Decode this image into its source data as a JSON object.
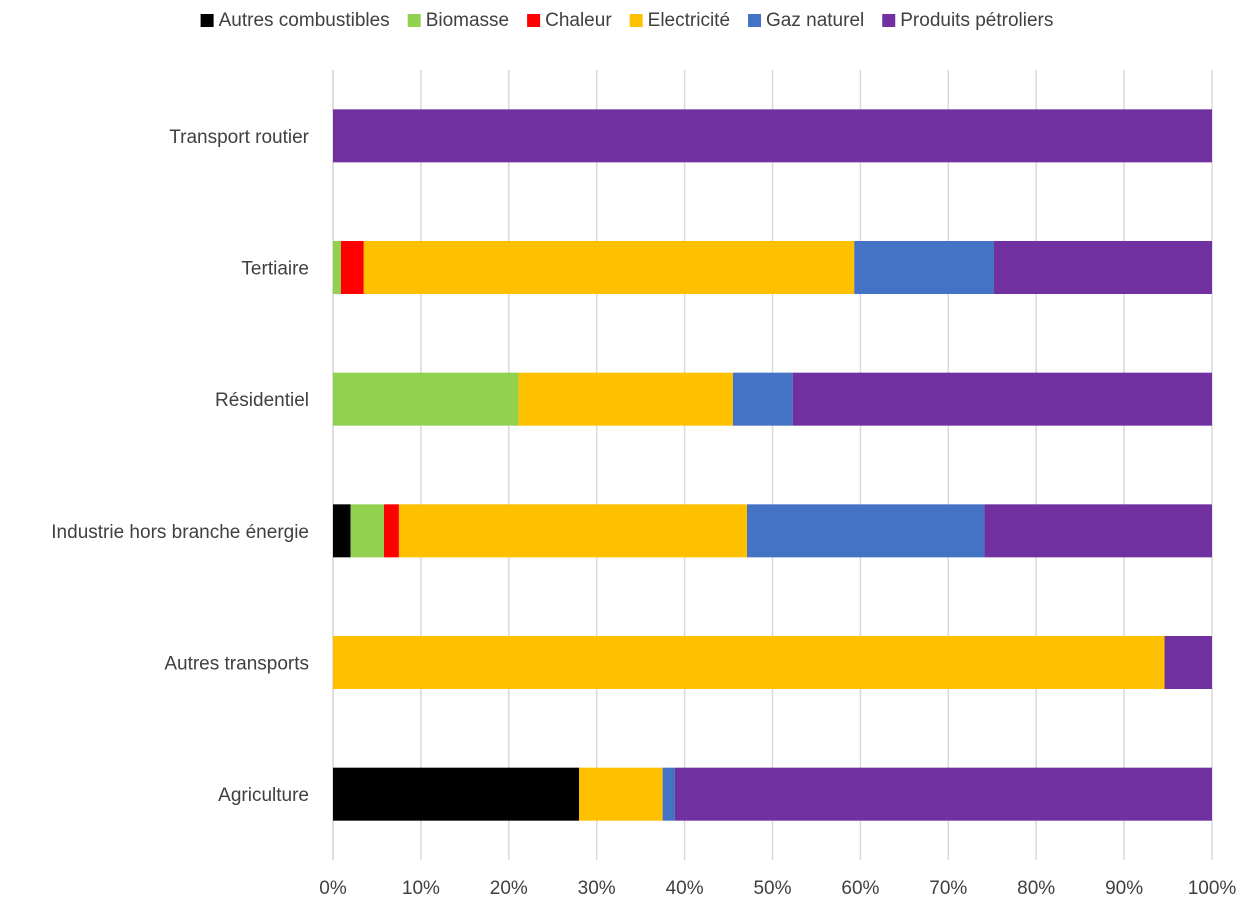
{
  "chart_data": {
    "type": "bar",
    "orientation": "horizontal",
    "stacked": "percent",
    "title": "",
    "xlabel": "",
    "ylabel": "",
    "xlim": [
      0,
      100
    ],
    "x_ticks": [
      "0%",
      "10%",
      "20%",
      "30%",
      "40%",
      "50%",
      "60%",
      "70%",
      "80%",
      "90%",
      "100%"
    ],
    "grid": "vertical",
    "legend_position": "top",
    "categories": [
      "Agriculture",
      "Autres transports",
      "Industrie hors branche énergie",
      "Résidentiel",
      "Tertiaire",
      "Transport routier"
    ],
    "series": [
      {
        "name": "Autres combustibles",
        "color": "#000000",
        "values": [
          28.0,
          0.0,
          2.0,
          0.0,
          0.0,
          0.0
        ]
      },
      {
        "name": "Biomasse",
        "color": "#92D050",
        "values": [
          0.0,
          0.0,
          3.8,
          21.1,
          0.9,
          0.0
        ]
      },
      {
        "name": "Chaleur",
        "color": "#FF0000",
        "values": [
          0.0,
          0.0,
          1.7,
          0.0,
          2.6,
          0.0
        ]
      },
      {
        "name": "Electricité",
        "color": "#FFC000",
        "values": [
          9.5,
          94.6,
          39.6,
          24.4,
          55.8,
          0.0
        ]
      },
      {
        "name": "Gaz naturel",
        "color": "#4472C4",
        "values": [
          1.4,
          0.0,
          27.0,
          6.8,
          15.9,
          0.0
        ]
      },
      {
        "name": "Produits pétroliers",
        "color": "#7030A0",
        "values": [
          61.1,
          5.4,
          25.9,
          47.7,
          24.8,
          100.0
        ]
      }
    ]
  }
}
